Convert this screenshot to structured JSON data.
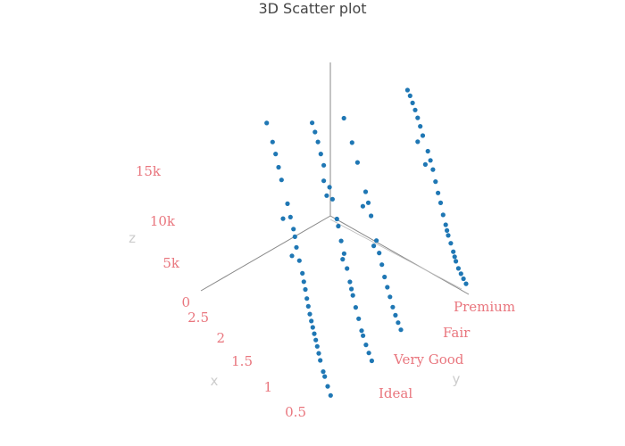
{
  "chart_data": {
    "type": "scatter",
    "subtype": "3d",
    "title": "3D Scatter plot",
    "xlabel": "x",
    "ylabel": "y",
    "zlabel": "z",
    "x_ticks": [
      "0.5",
      "1",
      "1.5",
      "2",
      "2.5"
    ],
    "y_categories": [
      "Ideal",
      "Very Good",
      "Fair",
      "Premium"
    ],
    "z_ticks": [
      "0",
      "5k",
      "10k",
      "15k"
    ],
    "zlim": [
      0,
      19000
    ],
    "xlim": [
      0.3,
      3.0
    ],
    "marker_color": "#1f77b4",
    "tick_color": "#e9767e",
    "axis_line_color": "#888888",
    "series": [
      {
        "y": "Ideal",
        "points": [
          [
            0.35,
            600
          ],
          [
            0.45,
            900
          ],
          [
            0.55,
            1300
          ],
          [
            0.6,
            1500
          ],
          [
            0.7,
            2100
          ],
          [
            0.75,
            2600
          ],
          [
            0.8,
            3100
          ],
          [
            0.85,
            3500
          ],
          [
            0.9,
            3900
          ],
          [
            0.95,
            4300
          ],
          [
            1.0,
            4700
          ],
          [
            1.05,
            5200
          ],
          [
            1.1,
            5800
          ],
          [
            1.15,
            6400
          ],
          [
            1.2,
            7200
          ],
          [
            1.25,
            7800
          ],
          [
            1.3,
            8500
          ],
          [
            1.4,
            9300
          ],
          [
            1.5,
            10200
          ],
          [
            1.55,
            11200
          ],
          [
            1.6,
            11800
          ],
          [
            1.7,
            12500
          ],
          [
            1.8,
            13400
          ],
          [
            2.0,
            14800
          ],
          [
            2.1,
            15600
          ],
          [
            2.2,
            16500
          ],
          [
            2.3,
            17200
          ],
          [
            1.95,
            9800
          ],
          [
            2.5,
            17900
          ],
          [
            1.65,
            7500
          ]
        ]
      },
      {
        "y": "Very Good",
        "points": [
          [
            0.35,
            550
          ],
          [
            0.45,
            850
          ],
          [
            0.55,
            1200
          ],
          [
            0.65,
            1700
          ],
          [
            0.7,
            2000
          ],
          [
            0.8,
            2900
          ],
          [
            0.9,
            3700
          ],
          [
            1.0,
            4600
          ],
          [
            1.05,
            5100
          ],
          [
            1.1,
            5700
          ],
          [
            1.2,
            6800
          ],
          [
            1.3,
            8100
          ],
          [
            1.4,
            9100
          ],
          [
            1.5,
            10400
          ],
          [
            1.55,
            11000
          ],
          [
            1.7,
            12600
          ],
          [
            1.8,
            13500
          ],
          [
            2.0,
            15000
          ],
          [
            2.1,
            15800
          ],
          [
            2.2,
            16700
          ],
          [
            2.3,
            17300
          ],
          [
            2.4,
            17800
          ],
          [
            1.9,
            11500
          ],
          [
            1.35,
            6900
          ],
          [
            2.0,
            12800
          ]
        ]
      },
      {
        "y": "Fair",
        "points": [
          [
            0.4,
            650
          ],
          [
            0.5,
            1000
          ],
          [
            0.6,
            1400
          ],
          [
            0.7,
            1900
          ],
          [
            0.8,
            2700
          ],
          [
            0.9,
            3400
          ],
          [
            1.0,
            4200
          ],
          [
            1.1,
            5300
          ],
          [
            1.2,
            6300
          ],
          [
            1.3,
            7400
          ],
          [
            1.5,
            9600
          ],
          [
            1.6,
            10800
          ],
          [
            1.7,
            11700
          ],
          [
            2.0,
            13900
          ],
          [
            2.2,
            15400
          ],
          [
            2.5,
            16900
          ],
          [
            1.4,
            6000
          ],
          [
            1.8,
            9000
          ]
        ]
      },
      {
        "y": "Premium",
        "points": [
          [
            0.3,
            500
          ],
          [
            0.4,
            800
          ],
          [
            0.5,
            1100
          ],
          [
            0.6,
            1450
          ],
          [
            0.7,
            2050
          ],
          [
            0.75,
            2500
          ],
          [
            0.8,
            3000
          ],
          [
            0.9,
            3800
          ],
          [
            1.0,
            4500
          ],
          [
            1.05,
            5000
          ],
          [
            1.1,
            5600
          ],
          [
            1.2,
            6600
          ],
          [
            1.3,
            7900
          ],
          [
            1.4,
            8900
          ],
          [
            1.5,
            10100
          ],
          [
            1.6,
            11400
          ],
          [
            1.7,
            12300
          ],
          [
            1.8,
            13200
          ],
          [
            2.0,
            14600
          ],
          [
            2.1,
            15500
          ],
          [
            2.2,
            16300
          ],
          [
            2.3,
            17000
          ],
          [
            2.4,
            17600
          ],
          [
            2.5,
            18200
          ],
          [
            2.6,
            18600
          ],
          [
            1.9,
            10900
          ],
          [
            2.2,
            12900
          ]
        ]
      }
    ]
  }
}
